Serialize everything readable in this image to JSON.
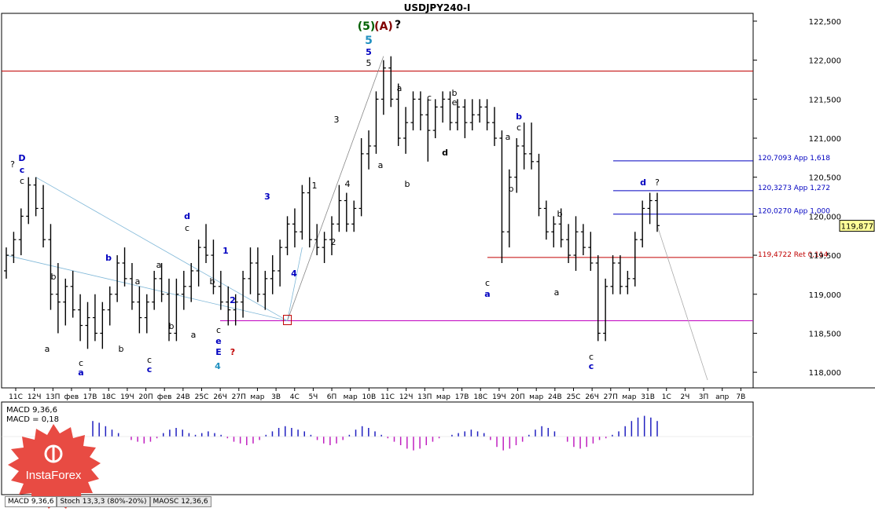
{
  "chart_data": {
    "type": "candlestick",
    "title": "USDJPY240-I",
    "ylim": [
      117.8,
      122.6
    ],
    "y_ticks": [
      "122,500",
      "122,000",
      "121,500",
      "121,000",
      "120,500",
      "120,000",
      "119,500",
      "119,000",
      "118,500",
      "118,000"
    ],
    "x_ticks": [
      "11С",
      "12Ч",
      "13П",
      "фев",
      "17В",
      "18С",
      "19Ч",
      "20П",
      "фев",
      "24В",
      "25С",
      "26Ч",
      "27П",
      "мар",
      "3В",
      "4С",
      "5Ч",
      "6П",
      "мар",
      "10В",
      "11С",
      "12Ч",
      "13П",
      "мар",
      "17В",
      "18С",
      "19Ч",
      "20П",
      "мар",
      "24В",
      "25С",
      "26Ч",
      "27П",
      "мар",
      "31В",
      "1С",
      "2Ч",
      "3П",
      "апр",
      "7В"
    ],
    "last_price": "119,877",
    "levels": [
      {
        "value": 121.86,
        "color": "#c00000",
        "label": ""
      },
      {
        "value": 119.4722,
        "color": "#c00000",
        "label": "119,4722 Ret 0,114"
      },
      {
        "value": 120.7093,
        "color": "#0000c0",
        "label": "120,7093 App 1,618"
      },
      {
        "value": 120.3273,
        "color": "#0000c0",
        "label": "120,3273 App 1,272"
      },
      {
        "value": 120.027,
        "color": "#0000c0",
        "label": "120,0270 App 1,000"
      },
      {
        "value": 118.66,
        "color": "#c000c0",
        "label": ""
      }
    ],
    "ohlc": [
      [
        119.3,
        119.6,
        119.2,
        119.5
      ],
      [
        119.5,
        119.8,
        119.4,
        119.7
      ],
      [
        119.7,
        120.1,
        119.5,
        120.0
      ],
      [
        120.0,
        120.5,
        119.9,
        120.4
      ],
      [
        120.4,
        120.5,
        120.0,
        120.1
      ],
      [
        120.1,
        120.4,
        119.6,
        119.7
      ],
      [
        119.7,
        119.9,
        118.8,
        119.0
      ],
      [
        119.0,
        119.4,
        118.5,
        118.9
      ],
      [
        118.9,
        119.2,
        118.6,
        119.1
      ],
      [
        119.1,
        119.3,
        118.7,
        118.8
      ],
      [
        118.8,
        119.0,
        118.4,
        118.6
      ],
      [
        118.6,
        118.9,
        118.3,
        118.7
      ],
      [
        118.7,
        119.0,
        118.4,
        118.5
      ],
      [
        118.5,
        118.9,
        118.3,
        118.8
      ],
      [
        118.8,
        119.1,
        118.6,
        119.0
      ],
      [
        119.0,
        119.5,
        118.9,
        119.4
      ],
      [
        119.4,
        119.6,
        119.1,
        119.2
      ],
      [
        119.2,
        119.4,
        118.8,
        118.9
      ],
      [
        118.9,
        119.1,
        118.5,
        118.7
      ],
      [
        118.7,
        119.0,
        118.5,
        118.9
      ],
      [
        118.9,
        119.3,
        118.8,
        119.2
      ],
      [
        119.2,
        119.4,
        118.9,
        119.0
      ],
      [
        119.0,
        119.2,
        118.4,
        118.5
      ],
      [
        118.5,
        119.2,
        118.4,
        119.0
      ],
      [
        119.0,
        119.3,
        118.8,
        119.1
      ],
      [
        119.1,
        119.4,
        118.9,
        119.3
      ],
      [
        119.3,
        119.7,
        119.1,
        119.6
      ],
      [
        119.6,
        119.9,
        119.4,
        119.5
      ],
      [
        119.5,
        119.7,
        119.0,
        119.1
      ],
      [
        119.1,
        119.3,
        118.8,
        118.9
      ],
      [
        118.9,
        119.1,
        118.6,
        118.8
      ],
      [
        118.8,
        119.0,
        118.6,
        118.9
      ],
      [
        118.9,
        119.3,
        118.7,
        119.2
      ],
      [
        119.2,
        119.6,
        119.0,
        119.4
      ],
      [
        119.4,
        119.6,
        118.9,
        119.0
      ],
      [
        119.0,
        119.3,
        118.8,
        119.2
      ],
      [
        119.2,
        119.5,
        119.0,
        119.3
      ],
      [
        119.3,
        119.7,
        119.1,
        119.6
      ],
      [
        119.6,
        120.0,
        119.5,
        119.9
      ],
      [
        119.9,
        120.1,
        119.6,
        119.8
      ],
      [
        119.8,
        120.4,
        119.7,
        120.3
      ],
      [
        120.3,
        120.5,
        119.6,
        119.7
      ],
      [
        119.7,
        119.9,
        119.5,
        119.6
      ],
      [
        119.6,
        119.8,
        119.4,
        119.7
      ],
      [
        119.7,
        120.0,
        119.5,
        119.9
      ],
      [
        119.9,
        120.4,
        119.8,
        120.2
      ],
      [
        120.2,
        120.3,
        119.8,
        119.9
      ],
      [
        119.9,
        120.2,
        119.8,
        120.1
      ],
      [
        120.1,
        121.0,
        120.0,
        120.8
      ],
      [
        120.8,
        121.1,
        120.6,
        120.9
      ],
      [
        120.9,
        121.6,
        120.8,
        121.5
      ],
      [
        121.5,
        122.0,
        121.3,
        121.9
      ],
      [
        121.9,
        122.05,
        121.4,
        121.5
      ],
      [
        121.5,
        121.7,
        120.9,
        121.0
      ],
      [
        121.0,
        121.4,
        120.8,
        121.2
      ],
      [
        121.2,
        121.6,
        121.1,
        121.5
      ],
      [
        121.5,
        121.6,
        121.1,
        121.3
      ],
      [
        121.3,
        121.5,
        120.7,
        121.1
      ],
      [
        121.1,
        121.5,
        121.0,
        121.4
      ],
      [
        121.4,
        121.6,
        121.2,
        121.5
      ],
      [
        121.5,
        121.6,
        121.1,
        121.2
      ],
      [
        121.2,
        121.5,
        121.1,
        121.4
      ],
      [
        121.4,
        121.5,
        121.0,
        121.2
      ],
      [
        121.2,
        121.5,
        121.1,
        121.3
      ],
      [
        121.3,
        121.5,
        121.2,
        121.4
      ],
      [
        121.4,
        121.5,
        121.1,
        121.2
      ],
      [
        121.2,
        121.4,
        120.9,
        121.0
      ],
      [
        121.0,
        121.1,
        119.4,
        119.8
      ],
      [
        119.8,
        120.6,
        119.6,
        120.5
      ],
      [
        120.5,
        121.0,
        120.3,
        120.9
      ],
      [
        120.9,
        121.2,
        120.6,
        120.8
      ],
      [
        120.8,
        121.2,
        120.6,
        120.7
      ],
      [
        120.7,
        120.8,
        120.0,
        120.1
      ],
      [
        120.1,
        120.2,
        119.7,
        119.8
      ],
      [
        119.8,
        120.0,
        119.6,
        119.9
      ],
      [
        119.9,
        120.1,
        119.6,
        119.7
      ],
      [
        119.7,
        119.9,
        119.4,
        119.5
      ],
      [
        119.5,
        120.0,
        119.3,
        119.8
      ],
      [
        119.8,
        119.9,
        119.5,
        119.6
      ],
      [
        119.6,
        119.8,
        119.3,
        119.4
      ],
      [
        119.4,
        119.5,
        118.4,
        118.5
      ],
      [
        118.5,
        119.2,
        118.4,
        119.1
      ],
      [
        119.1,
        119.5,
        119.0,
        119.4
      ],
      [
        119.4,
        119.5,
        119.0,
        119.1
      ],
      [
        119.1,
        119.3,
        119.0,
        119.2
      ],
      [
        119.2,
        119.8,
        119.1,
        119.7
      ],
      [
        119.7,
        120.2,
        119.6,
        120.1
      ],
      [
        120.1,
        120.3,
        119.9,
        120.2
      ],
      [
        120.2,
        120.3,
        119.8,
        119.88
      ]
    ],
    "macd": [
      0.9,
      0.8,
      0.6,
      0.4,
      0.2,
      0.0,
      -0.2,
      -0.3,
      -0.4,
      -0.3,
      -0.1,
      0.2,
      0.4,
      0.5,
      0.4,
      0.2,
      0.1,
      0.2,
      0.3,
      0.2,
      0.1,
      -0.1,
      -0.3,
      -0.4,
      -0.5,
      -0.4,
      -0.2,
      0.1,
      0.3,
      0.5,
      0.6,
      0.5,
      0.4,
      0.3,
      0.1,
      -0.2,
      -0.4,
      -0.5,
      -0.4,
      -0.2,
      0.1,
      0.4,
      0.6,
      0.5,
      0.3,
      0.1,
      -0.1,
      -0.3,
      -0.5,
      -0.7,
      -0.8,
      -0.7,
      -0.5,
      -0.3,
      -0.1,
      0.0,
      0.1,
      0.2,
      0.3,
      0.4,
      0.3,
      0.2,
      -0.2,
      -0.6,
      -0.8,
      -0.7,
      -0.5,
      -0.3,
      0.1,
      0.4,
      0.6,
      0.5,
      0.3,
      0.0,
      -0.3,
      -0.6,
      -0.7,
      -0.6,
      -0.4,
      -0.2,
      -0.1,
      0.1,
      0.3,
      0.6,
      0.9,
      1.1,
      1.2,
      1.1,
      0.9
    ],
    "macd_label_1": "MACD 9,36,6",
    "macd_label_2": "MACD = 0,18",
    "wave_labels": [
      {
        "text": "(5)",
        "color": "#006000"
      },
      {
        "text": "(A)",
        "color": "#800000"
      },
      {
        "text": "?",
        "color": "#000000"
      },
      {
        "text": "5",
        "color": "#2090c0"
      },
      {
        "text": "5",
        "color": "#0000c0"
      },
      {
        "text": "5",
        "color": "#000000"
      },
      {
        "text": "?",
        "color": "#000000"
      },
      {
        "text": "D",
        "color": "#0000c0"
      },
      {
        "text": "c",
        "color": "#0000c0"
      },
      {
        "text": "c",
        "color": "#000000"
      },
      {
        "text": "b",
        "color": "#0000c0"
      },
      {
        "text": "b",
        "color": "#000000"
      },
      {
        "text": "a",
        "color": "#000000"
      },
      {
        "text": "c",
        "color": "#000000"
      },
      {
        "text": "a",
        "color": "#0000c0"
      },
      {
        "text": "b",
        "color": "#000000"
      },
      {
        "text": "a",
        "color": "#000000"
      },
      {
        "text": "c",
        "color": "#000000"
      },
      {
        "text": "c",
        "color": "#0000c0"
      },
      {
        "text": "a",
        "color": "#000000"
      },
      {
        "text": "b",
        "color": "#000000"
      },
      {
        "text": "d",
        "color": "#0000c0"
      },
      {
        "text": "c",
        "color": "#000000"
      },
      {
        "text": "a",
        "color": "#000000"
      },
      {
        "text": "b",
        "color": "#000000"
      },
      {
        "text": "c",
        "color": "#000000"
      },
      {
        "text": "e",
        "color": "#0000c0"
      },
      {
        "text": "E",
        "color": "#0000c0"
      },
      {
        "text": "?",
        "color": "#c00000"
      },
      {
        "text": "4",
        "color": "#2090c0"
      },
      {
        "text": "1",
        "color": "#0000c0"
      },
      {
        "text": "2",
        "color": "#0000c0"
      },
      {
        "text": "3",
        "color": "#0000c0"
      },
      {
        "text": "4",
        "color": "#0000c0"
      },
      {
        "text": "1",
        "color": "#000000"
      },
      {
        "text": "2",
        "color": "#000000"
      },
      {
        "text": "3",
        "color": "#000000"
      },
      {
        "text": "4",
        "color": "#000000"
      },
      {
        "text": "a",
        "color": "#000000"
      },
      {
        "text": "a",
        "color": "#000000"
      },
      {
        "text": "b",
        "color": "#000000"
      },
      {
        "text": "c",
        "color": "#000000"
      },
      {
        "text": "b",
        "color": "#000000"
      },
      {
        "text": "e",
        "color": "#000000"
      },
      {
        "text": "d",
        "color": "#000000"
      },
      {
        "text": "b",
        "color": "#0000c0"
      },
      {
        "text": "c",
        "color": "#000000"
      },
      {
        "text": "a",
        "color": "#000000"
      },
      {
        "text": "b",
        "color": "#000000"
      },
      {
        "text": "c",
        "color": "#000000"
      },
      {
        "text": "a",
        "color": "#0000c0"
      },
      {
        "text": "b",
        "color": "#000000"
      },
      {
        "text": "a",
        "color": "#000000"
      },
      {
        "text": "c",
        "color": "#000000"
      },
      {
        "text": "c",
        "color": "#0000c0"
      },
      {
        "text": "d",
        "color": "#0000c0"
      },
      {
        "text": "?",
        "color": "#000000"
      }
    ]
  },
  "logo_text": "InstaForex",
  "tabs": [
    "MACD 9,36,6",
    "Stoch 13,3,3 (80%-20%)",
    "MAOSC 12,36,6"
  ]
}
